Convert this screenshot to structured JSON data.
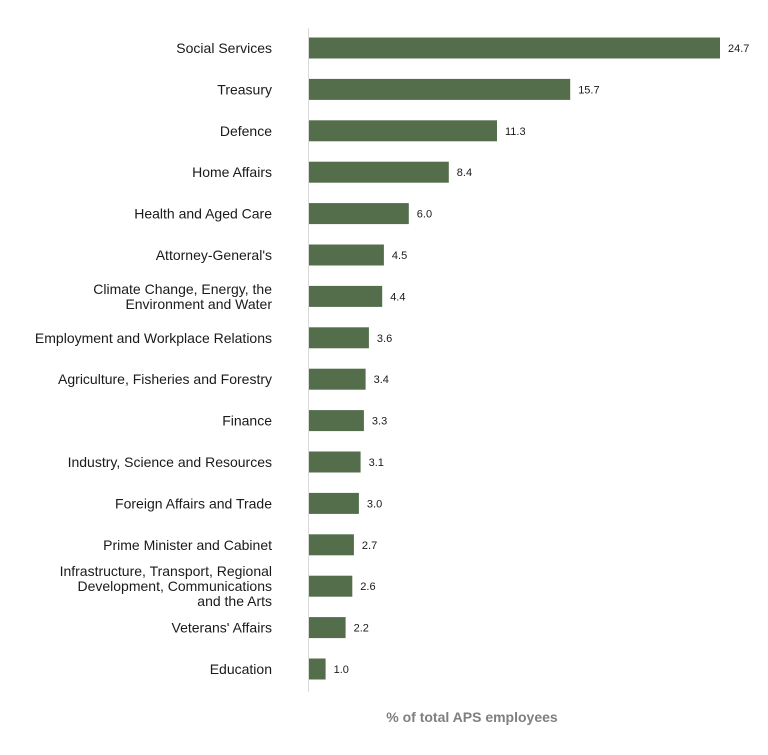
{
  "chart_data": {
    "type": "bar",
    "orientation": "horizontal",
    "categories": [
      [
        "Social Services"
      ],
      [
        "Treasury"
      ],
      [
        "Defence"
      ],
      [
        "Home Affairs"
      ],
      [
        "Health and Aged Care"
      ],
      [
        "Attorney-General's"
      ],
      [
        "Climate Change, Energy, the",
        "Environment and Water"
      ],
      [
        "Employment and Workplace Relations"
      ],
      [
        "Agriculture, Fisheries and Forestry"
      ],
      [
        "Finance"
      ],
      [
        "Industry, Science and Resources"
      ],
      [
        "Foreign Affairs and Trade"
      ],
      [
        "Prime Minister and Cabinet"
      ],
      [
        "Infrastructure, Transport, Regional",
        "Development, Communications",
        "and the Arts"
      ],
      [
        "Veterans' Affairs"
      ],
      [
        "Education"
      ]
    ],
    "values": [
      24.7,
      15.7,
      11.3,
      8.4,
      6.0,
      4.5,
      4.4,
      3.6,
      3.4,
      3.3,
      3.1,
      3.0,
      2.7,
      2.6,
      2.2,
      1.0
    ],
    "value_labels": [
      "24.7",
      "15.7",
      "11.3",
      "8.4",
      "6.0",
      "4.5",
      "4.4",
      "3.6",
      "3.4",
      "3.3",
      "3.1",
      "3.0",
      "2.7",
      "2.6",
      "2.2",
      "1.0"
    ],
    "xlabel": "% of total APS employees",
    "xlim": [
      0,
      24.7
    ],
    "grid": false,
    "legend": "none",
    "bar_color": "#546e4c",
    "axis_color": "#d9d9d9"
  }
}
